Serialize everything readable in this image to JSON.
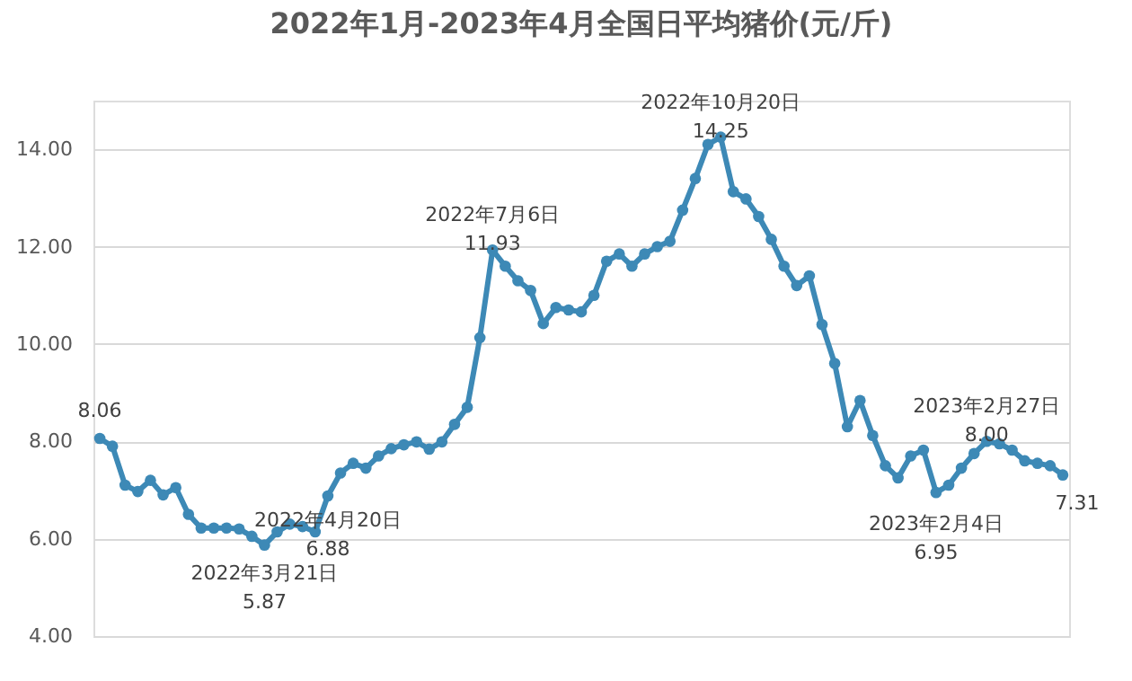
{
  "chart_data": {
    "type": "line",
    "title": "2022年1月-2023年4月全国日平均猪价(元/斤)",
    "categories": [
      null,
      null,
      null,
      null,
      null,
      null,
      null,
      null,
      null,
      null,
      null,
      null,
      null,
      null,
      null,
      null,
      null,
      null,
      null,
      null,
      null,
      null,
      null,
      null,
      null,
      null,
      null,
      null,
      null,
      null,
      null,
      null,
      null,
      null,
      null,
      null,
      null,
      null,
      null,
      null,
      null,
      null,
      null,
      null,
      null,
      null,
      null,
      null,
      null,
      null,
      null,
      null,
      null,
      null,
      null,
      null,
      null,
      null,
      null,
      null,
      null,
      null,
      null,
      null,
      null,
      null,
      null,
      null,
      null,
      null,
      null,
      null,
      null,
      null,
      null,
      null,
      null
    ],
    "series": [
      {
        "color": "#3d89b6",
        "values": [
          8.06,
          7.9,
          7.1,
          6.97,
          7.2,
          6.9,
          7.05,
          6.5,
          6.22,
          6.22,
          6.22,
          6.2,
          6.05,
          5.87,
          6.14,
          6.3,
          6.25,
          6.14,
          6.88,
          7.35,
          7.55,
          7.45,
          7.7,
          7.85,
          7.93,
          7.99,
          7.84,
          7.99,
          8.35,
          8.7,
          10.13,
          11.93,
          11.6,
          11.3,
          11.1,
          10.42,
          10.75,
          10.7,
          10.66,
          11.0,
          11.7,
          11.85,
          11.6,
          11.85,
          12.0,
          12.11,
          12.75,
          13.4,
          14.1,
          14.25,
          13.13,
          12.98,
          12.62,
          12.15,
          11.6,
          11.2,
          11.4,
          10.4,
          9.6,
          8.3,
          8.84,
          8.12,
          7.5,
          7.25,
          7.7,
          7.82,
          6.95,
          7.1,
          7.45,
          7.75,
          8.0,
          7.95,
          7.82,
          7.6,
          7.55,
          7.5,
          7.31
        ]
      }
    ],
    "marker": "circle",
    "line_style": "solid",
    "ylim": [
      4,
      15
    ],
    "yticks": [
      {
        "value": 4,
        "label": "4.00"
      },
      {
        "value": 6,
        "label": "6.00"
      },
      {
        "value": 8,
        "label": "8.00"
      },
      {
        "value": 10,
        "label": "10.00"
      },
      {
        "value": 12,
        "label": "12.00"
      },
      {
        "value": 14,
        "label": "14.00"
      }
    ],
    "grid": "y",
    "tick_labels": "y",
    "annotations": [
      {
        "text": "8.06",
        "y": 8.06
      },
      {
        "text": "2022年3月21日\n5.87",
        "y": 5.87
      },
      {
        "text": "2022年4月20日\n6.88",
        "y": 6.88
      },
      {
        "text": "2022年7月6日\n11.93",
        "y": 11.93
      },
      {
        "text": "2022年10月20日\n14.25",
        "y": 14.25
      },
      {
        "text": "2023年2月4日\n6.95",
        "y": 6.95
      },
      {
        "text": "2023年2月27日\n8.00",
        "y": 8.0
      },
      {
        "text": "7.31",
        "y": 7.31
      }
    ]
  }
}
